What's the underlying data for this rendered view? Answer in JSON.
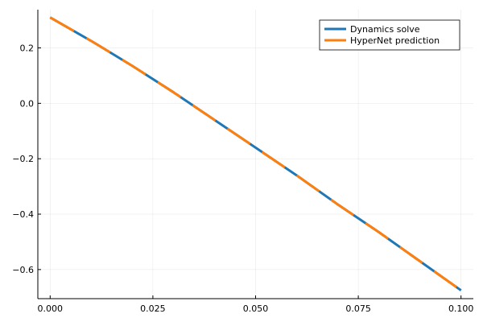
{
  "chart_data": {
    "type": "line",
    "title": "",
    "xlabel": "",
    "ylabel": "",
    "xlim": [
      -0.003,
      0.103
    ],
    "ylim": [
      -0.705,
      0.338
    ],
    "x_ticks": [
      0.0,
      0.025,
      0.05,
      0.075,
      0.1
    ],
    "x_tick_labels": [
      "0.000",
      "0.025",
      "0.050",
      "0.075",
      "0.100"
    ],
    "y_ticks": [
      -0.6,
      -0.4,
      -0.2,
      0.0,
      0.2
    ],
    "y_tick_labels": [
      "−0.6",
      "−0.4",
      "−0.2",
      "0.0",
      "0.2"
    ],
    "grid": true,
    "legend_position": "top-right",
    "series": [
      {
        "name": "Dynamics solve",
        "color": "#1f77b4",
        "style": "solid",
        "x": [
          0.0,
          0.01,
          0.02,
          0.03,
          0.04,
          0.05,
          0.06,
          0.07,
          0.08,
          0.09,
          0.1
        ],
        "y": [
          0.31,
          0.225,
          0.135,
          0.04,
          -0.06,
          -0.16,
          -0.26,
          -0.365,
          -0.465,
          -0.57,
          -0.675
        ]
      },
      {
        "name": "HyperNet prediction",
        "color": "#ff7f0e",
        "style": "dashed",
        "x": [
          0.0,
          0.01,
          0.02,
          0.03,
          0.04,
          0.05,
          0.06,
          0.07,
          0.08,
          0.09,
          0.1
        ],
        "y": [
          0.31,
          0.225,
          0.135,
          0.04,
          -0.06,
          -0.16,
          -0.26,
          -0.365,
          -0.465,
          -0.57,
          -0.675
        ]
      }
    ]
  }
}
